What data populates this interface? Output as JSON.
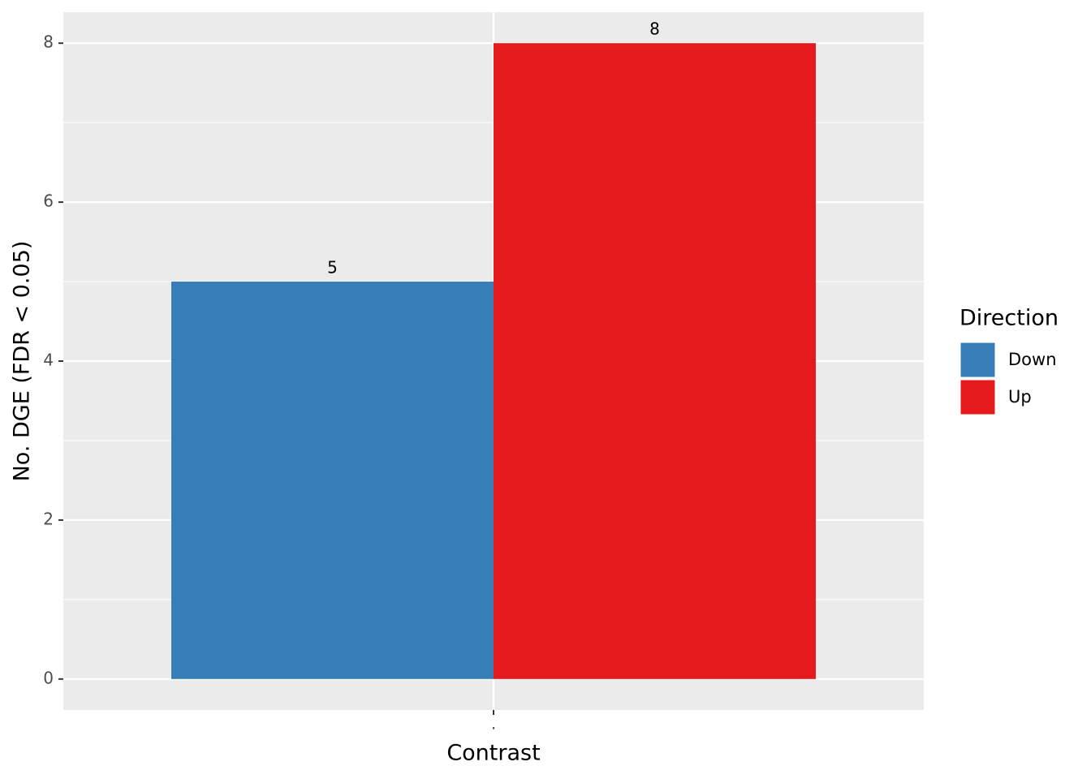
{
  "chart_data": {
    "type": "bar",
    "x_label": "Contrast",
    "y_label": "No. DGE (FDR < 0.05)",
    "categories": [
      "."
    ],
    "series": [
      {
        "name": "Down",
        "color": "#377eb8",
        "values": [
          5
        ]
      },
      {
        "name": "Up",
        "color": "#e41a1c",
        "values": [
          8
        ]
      }
    ],
    "ylim": [
      -0.39,
      8.39
    ],
    "yticks": [
      0,
      2,
      4,
      6,
      8
    ],
    "grid": true,
    "legend_title": "Direction",
    "legend_position": "right"
  }
}
